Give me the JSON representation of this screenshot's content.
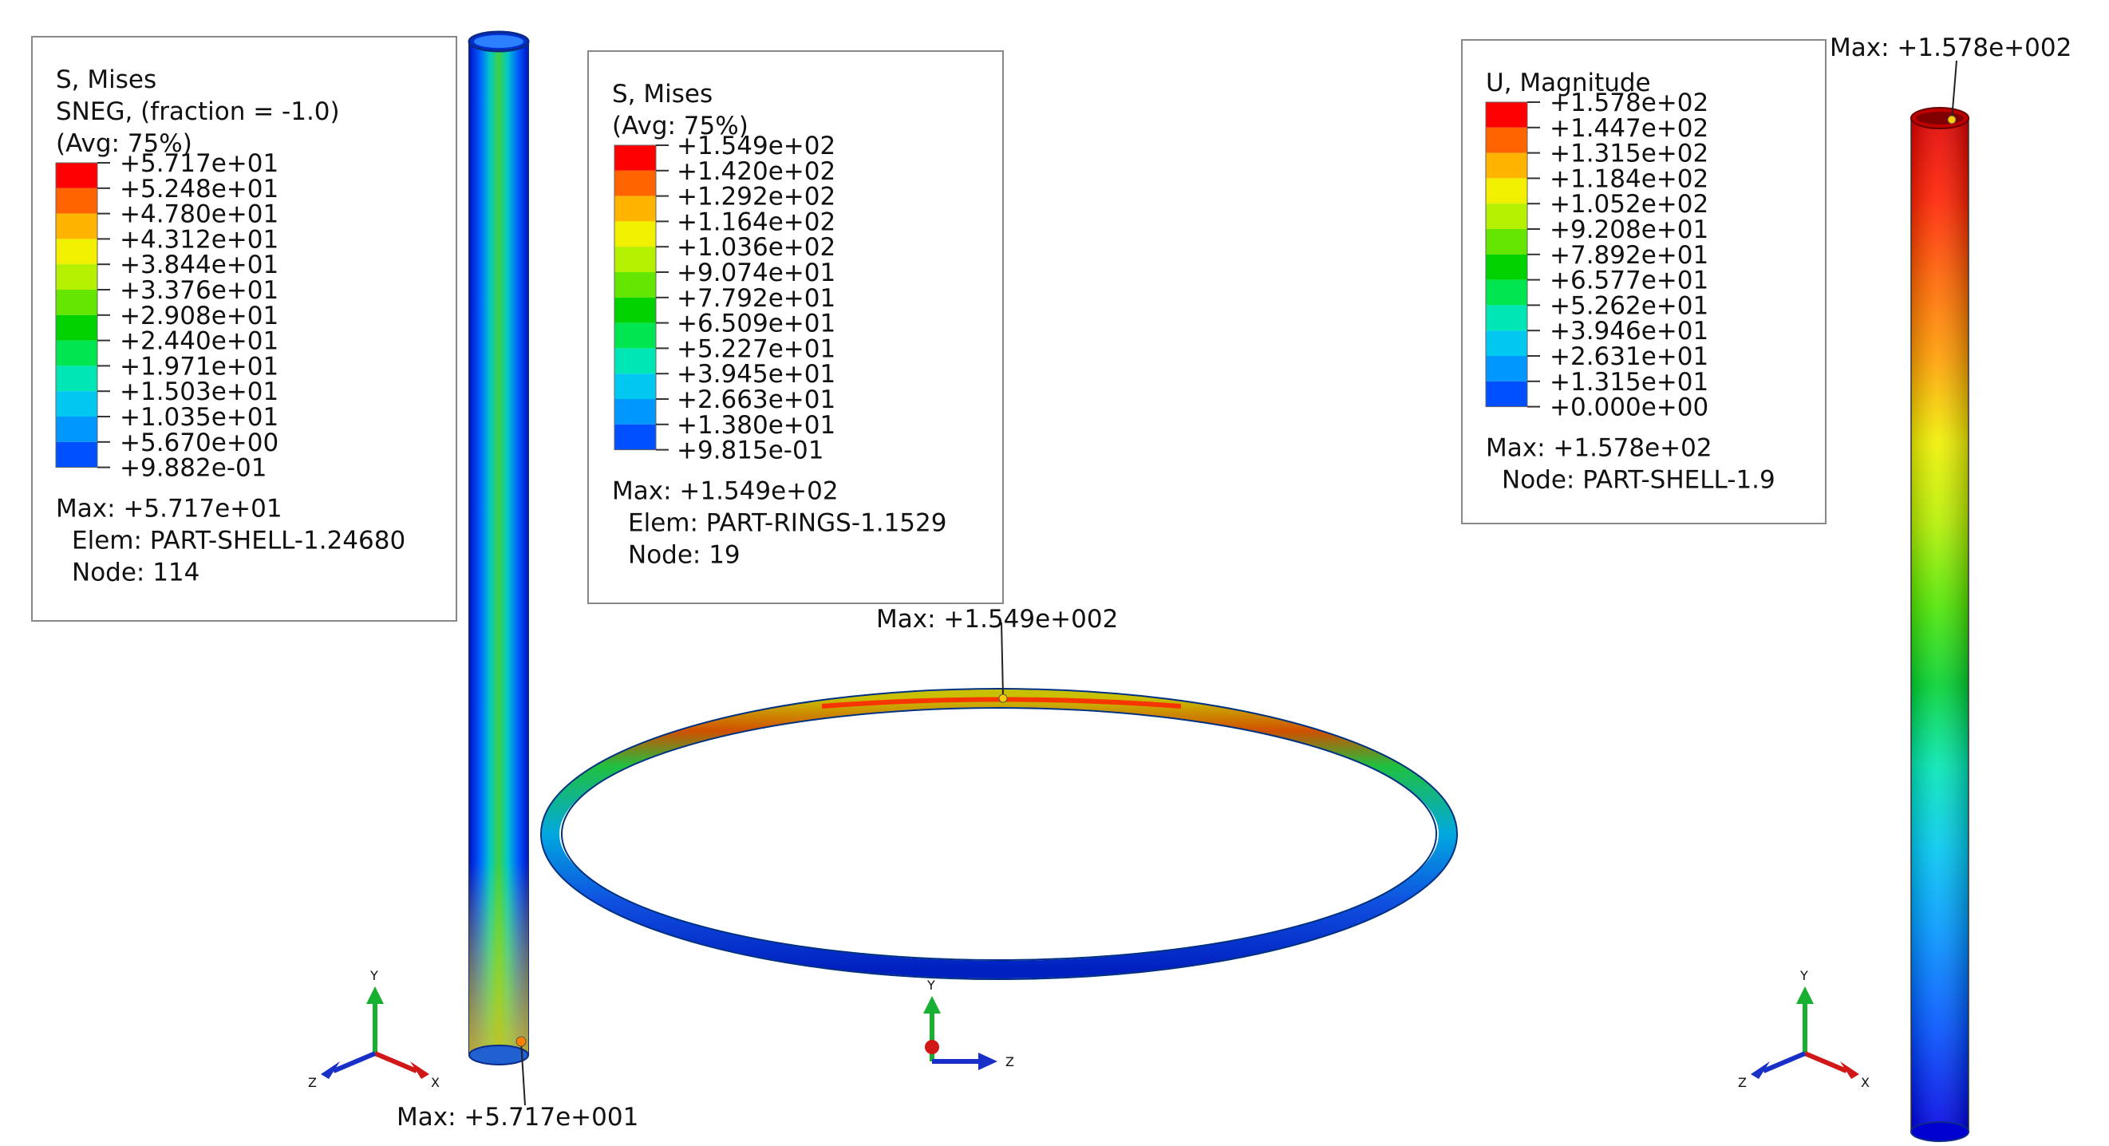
{
  "colors": {
    "scale": [
      "#0000ff",
      "#0050ff",
      "#0098ff",
      "#00c8f0",
      "#00e6b4",
      "#00e650",
      "#00d200",
      "#64e600",
      "#b4f000",
      "#f0f000",
      "#ffb400",
      "#ff6400",
      "#ff0000"
    ],
    "tube_edge": "#0b2a8a",
    "axis_x": "#d01818",
    "axis_y": "#18b030",
    "axis_z": "#1830c8"
  },
  "legends": [
    {
      "title": [
        "S, Mises",
        "SNEG, (fraction = -1.0)",
        "(Avg: 75%)"
      ],
      "values": [
        "+5.717e+01",
        "+5.248e+01",
        "+4.780e+01",
        "+4.312e+01",
        "+3.844e+01",
        "+3.376e+01",
        "+2.908e+01",
        "+2.440e+01",
        "+1.971e+01",
        "+1.503e+01",
        "+1.035e+01",
        "+5.670e+00",
        "+9.882e-01"
      ],
      "info": [
        "Max: +5.717e+01",
        "Elem: PART-SHELL-1.24680",
        "Node: 114"
      ]
    },
    {
      "title": [
        "S, Mises",
        "(Avg: 75%)"
      ],
      "values": [
        "+1.549e+02",
        "+1.420e+02",
        "+1.292e+02",
        "+1.164e+02",
        "+1.036e+02",
        "+9.074e+01",
        "+7.792e+01",
        "+6.509e+01",
        "+5.227e+01",
        "+3.945e+01",
        "+2.663e+01",
        "+1.380e+01",
        "+9.815e-01"
      ],
      "info": [
        "Max: +1.549e+02",
        "Elem: PART-RINGS-1.1529",
        "Node: 19"
      ]
    },
    {
      "title": [
        "U, Magnitude"
      ],
      "values": [
        "+1.578e+02",
        "+1.447e+02",
        "+1.315e+02",
        "+1.184e+02",
        "+1.052e+02",
        "+9.208e+01",
        "+7.892e+01",
        "+6.577e+01",
        "+5.262e+01",
        "+3.946e+01",
        "+2.631e+01",
        "+1.315e+01",
        "+0.000e+00"
      ],
      "info": [
        "Max: +1.578e+02",
        "Node: PART-SHELL-1.9"
      ]
    }
  ],
  "annotations": {
    "tube_left_max": "Max: +5.717e+001",
    "ring_max": "Max: +1.549e+002",
    "tube_right_max": "Max: +1.578e+002"
  },
  "triads": [
    {
      "x": "X",
      "y": "Y",
      "z": "Z"
    },
    {
      "y": "Y",
      "z": "Z"
    },
    {
      "x": "X",
      "y": "Y",
      "z": "Z"
    }
  ]
}
